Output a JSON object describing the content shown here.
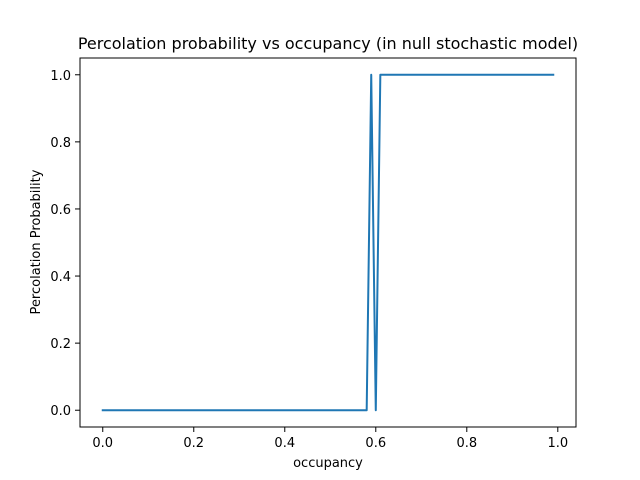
{
  "chart_data": {
    "type": "line",
    "title": "Percolation probability vs occupancy (in null stochastic model)",
    "xlabel": "occupancy",
    "ylabel": "Percolation Probability",
    "xlim": [
      -0.05,
      1.04
    ],
    "ylim": [
      -0.05,
      1.05
    ],
    "xticks": [
      0.0,
      0.2,
      0.4,
      0.6,
      0.8,
      1.0
    ],
    "xtick_labels": [
      "0.0",
      "0.2",
      "0.4",
      "0.6",
      "0.8",
      "1.0"
    ],
    "yticks": [
      0.0,
      0.2,
      0.4,
      0.6,
      0.8,
      1.0
    ],
    "ytick_labels": [
      "0.0",
      "0.2",
      "0.4",
      "0.6",
      "0.8",
      "1.0"
    ],
    "grid": false,
    "legend": "none",
    "series": [
      {
        "color": "#1f77b4",
        "x": [
          0.0,
          0.58,
          0.59,
          0.6,
          0.61,
          0.99
        ],
        "y": [
          0.0,
          0.0,
          1.0,
          0.0,
          1.0,
          1.0
        ]
      }
    ]
  }
}
